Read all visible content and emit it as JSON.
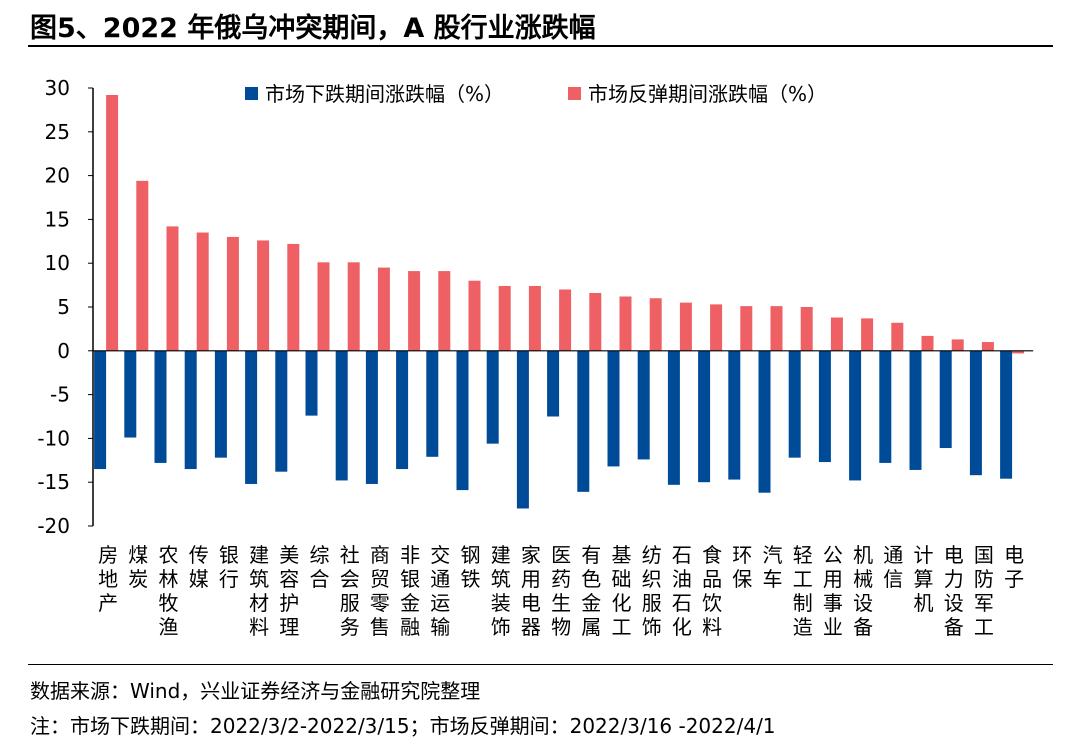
{
  "title": "图5、2022 年俄乌冲突期间，A 股行业涨跌幅",
  "source": "数据来源：Wind，兴业证券经济与金融研究院整理",
  "note": "注：市场下跌期间：2022/3/2-2022/3/15；市场反弹期间：2022/3/16 -2022/4/1",
  "chart_data": {
    "type": "bar",
    "title": "",
    "xlabel": "",
    "ylabel": "",
    "ylim": [
      -20,
      30
    ],
    "yticks": [
      30,
      25,
      20,
      15,
      10,
      5,
      0,
      -5,
      -10,
      -15,
      -20
    ],
    "legend": "top",
    "categories": [
      "房地产",
      "煤炭",
      "农林牧渔",
      "传媒",
      "银行",
      "建筑材料",
      "美容护理",
      "综合",
      "社会服务",
      "商贸零售",
      "非银金融",
      "交通运输",
      "钢铁",
      "建筑装饰",
      "家用电器",
      "医药生物",
      "有色金属",
      "基础化工",
      "纺织服饰",
      "石油石化",
      "食品饮料",
      "环保",
      "汽车",
      "轻工制造",
      "公用事业",
      "机械设备",
      "通信",
      "计算机",
      "电力设备",
      "国防军工",
      "电子"
    ],
    "series": [
      {
        "name": "市场下跌期间涨跌幅（%）",
        "color": "#004b97",
        "values": [
          -13.5,
          -9.9,
          -12.8,
          -13.5,
          -12.2,
          -15.2,
          -13.8,
          -7.4,
          -14.8,
          -15.2,
          -13.5,
          -12.1,
          -15.9,
          -10.6,
          -18.0,
          -7.5,
          -16.1,
          -13.2,
          -12.4,
          -15.3,
          -15.0,
          -14.7,
          -16.2,
          -12.2,
          -12.7,
          -14.8,
          -12.8,
          -13.6,
          -11.1,
          -14.2,
          -14.6
        ]
      },
      {
        "name": "市场反弹期间涨跌幅（%）",
        "color": "#ee6063",
        "values": [
          29.2,
          19.4,
          14.2,
          13.5,
          13.0,
          12.6,
          12.2,
          10.1,
          10.1,
          9.5,
          9.1,
          9.1,
          8.0,
          7.4,
          7.4,
          7.0,
          6.6,
          6.2,
          6.0,
          5.5,
          5.3,
          5.1,
          5.1,
          5.0,
          3.8,
          3.7,
          3.2,
          1.7,
          1.3,
          1.0,
          -0.3
        ]
      }
    ]
  }
}
